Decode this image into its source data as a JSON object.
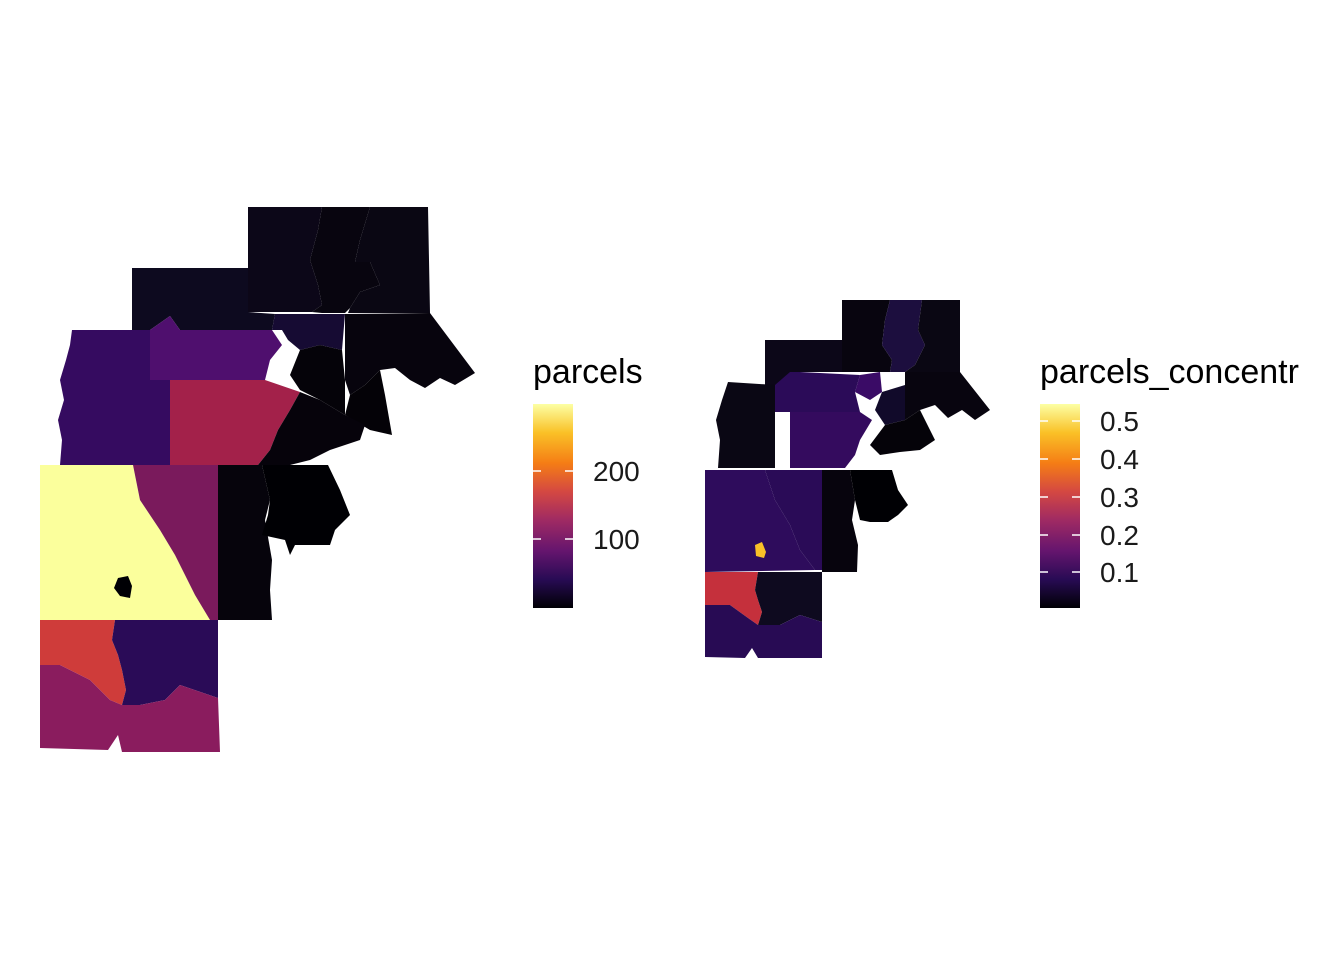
{
  "panels": [
    {
      "legend": {
        "title": "parcels",
        "ticks": [
          "200",
          "100"
        ],
        "tick_values": [
          200,
          100
        ],
        "range": [
          0,
          300
        ],
        "palette": [
          "#000004",
          "#280B54",
          "#65156E",
          "#9F2A63",
          "#D44842",
          "#F57D15",
          "#FAC127",
          "#FCFFA4"
        ]
      }
    },
    {
      "legend": {
        "title": "parcels_concentr",
        "ticks": [
          "0.5",
          "0.4",
          "0.3",
          "0.2",
          "0.1"
        ],
        "tick_values": [
          0.5,
          0.4,
          0.3,
          0.2,
          0.1
        ],
        "range": [
          0.02,
          0.55
        ],
        "palette": [
          "#000004",
          "#280B54",
          "#65156E",
          "#9F2A63",
          "#D44842",
          "#F57D15",
          "#FAC127",
          "#FCFFA4"
        ]
      }
    }
  ]
}
